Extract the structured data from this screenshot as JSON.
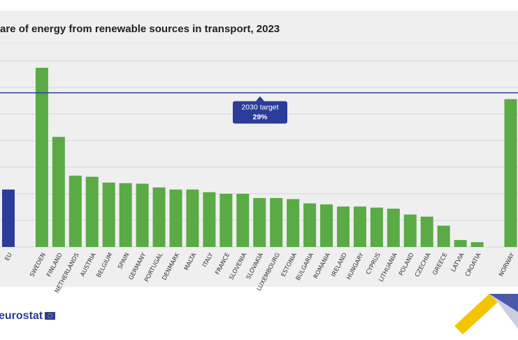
{
  "chart_data": {
    "type": "bar",
    "title": "are of energy from renewable sources in transport, 2023",
    "categories": [
      "EU",
      null,
      "SWEDEN",
      "FINLAND",
      "NETHERLANDS",
      "AUSTRIA",
      "BELGIUM",
      "SPAIN",
      "GERMANY",
      "PORTUGAL",
      "DENMARK",
      "MALTA",
      "ITALY",
      "FRANCE",
      "SLOVENIA",
      "SLOVAKIA",
      "LUXEMBOURG",
      "ESTONIA",
      "BULGARIA",
      "ROMANIA",
      "IRELAND",
      "HUNGARY",
      "CYPRUS",
      "LITHUANIA",
      "POLAND",
      "CZECHIA",
      "GREECE",
      "LATVIA",
      "CROATIA",
      null,
      "NORWAY"
    ],
    "values": [
      10.8,
      null,
      33.7,
      20.7,
      13.4,
      13.2,
      12.1,
      12.0,
      11.9,
      11.2,
      10.8,
      10.8,
      10.3,
      10.0,
      10.0,
      9.2,
      9.2,
      9.0,
      8.2,
      8.0,
      7.6,
      7.6,
      7.4,
      7.2,
      6.1,
      5.7,
      4.0,
      1.3,
      0.9,
      null,
      27.8
    ],
    "colors": [
      "#2b3c9b",
      null,
      "#5aaa46",
      "#5aaa46",
      "#5aaa46",
      "#5aaa46",
      "#5aaa46",
      "#5aaa46",
      "#5aaa46",
      "#5aaa46",
      "#5aaa46",
      "#5aaa46",
      "#5aaa46",
      "#5aaa46",
      "#5aaa46",
      "#5aaa46",
      "#5aaa46",
      "#5aaa46",
      "#5aaa46",
      "#5aaa46",
      "#5aaa46",
      "#5aaa46",
      "#5aaa46",
      "#5aaa46",
      "#5aaa46",
      "#5aaa46",
      "#5aaa46",
      "#5aaa46",
      "#5aaa46",
      null,
      "#5aaa46"
    ],
    "ylim": [
      0,
      35
    ],
    "yticks": [
      0,
      5,
      10,
      15,
      20,
      25,
      30,
      35
    ],
    "grid": true,
    "target": {
      "label": "2030 target",
      "value": 29,
      "value_label": "29%",
      "color": "#2b3c9b"
    },
    "source": "eurostat"
  }
}
